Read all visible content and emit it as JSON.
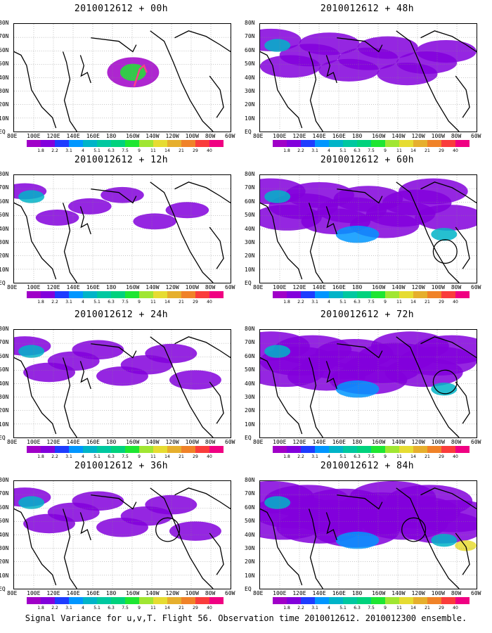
{
  "panels": [
    {
      "title": "2010012612 + 00h",
      "circle": null,
      "spread": 0
    },
    {
      "title": "2010012612 + 48h",
      "circle": null,
      "spread": 3
    },
    {
      "title": "2010012612 + 12h",
      "circle": null,
      "spread": 1
    },
    {
      "title": "2010012612 + 60h",
      "circle": [
        265,
        110
      ],
      "spread": 4
    },
    {
      "title": "2010012612 + 24h",
      "circle": null,
      "spread": 2
    },
    {
      "title": "2010012612 + 72h",
      "circle": [
        265,
        75
      ],
      "spread": 5
    },
    {
      "title": "2010012612 + 36h",
      "circle": [
        220,
        70
      ],
      "spread": 2
    },
    {
      "title": "2010012612 + 84h",
      "circle": [
        220,
        70
      ],
      "spread": 6
    }
  ],
  "y_ticks": [
    "80N",
    "70N",
    "60N",
    "50N",
    "40N",
    "30N",
    "20N",
    "10N",
    "EQ"
  ],
  "x_ticks": [
    "80E",
    "100E",
    "120E",
    "140E",
    "160E",
    "180",
    "160W",
    "140W",
    "120W",
    "100W",
    "80W",
    "60W"
  ],
  "colorbar": {
    "labels": [
      "1.8",
      "2.2",
      "3.1",
      "4",
      "5.1",
      "6.3",
      "7.5",
      "9",
      "11",
      "14",
      "21",
      "29",
      "40"
    ],
    "colors": [
      "#a000c8",
      "#8200dc",
      "#1e3cff",
      "#0096ff",
      "#00b4c8",
      "#00c8a0",
      "#00d27d",
      "#1ee632",
      "#a0e632",
      "#e6dc32",
      "#e6af2d",
      "#f08228",
      "#fa3c3c",
      "#f00082"
    ]
  },
  "caption": "Signal Variance for u,v,T. Flight 56. Observation time 2010012612. 2010012300 ensemble."
}
